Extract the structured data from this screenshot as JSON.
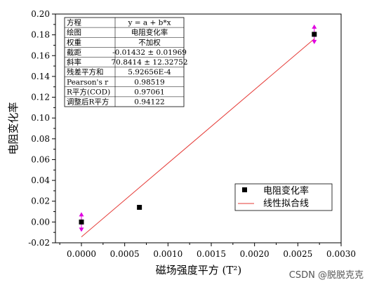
{
  "chart_data": {
    "type": "scatter",
    "xlabel": "磁场强度平方 (T²)",
    "ylabel": "电阻变化率",
    "xlim": [
      -0.0003,
      0.003
    ],
    "ylim": [
      -0.02,
      0.2
    ],
    "x_ticks": [
      "0.0000",
      "0.0005",
      "0.0010",
      "0.0015",
      "0.0020",
      "0.0025",
      "0.0030"
    ],
    "y_ticks": [
      "-0.02",
      "0.00",
      "0.02",
      "0.04",
      "0.06",
      "0.08",
      "0.10",
      "0.12",
      "0.14",
      "0.16",
      "0.18",
      "0.20"
    ],
    "series": [
      {
        "name": "电阻变化率",
        "marker": "square",
        "color": "#000000",
        "x": [
          0.0,
          0.00067,
          0.00269
        ],
        "y": [
          0.0,
          0.0141,
          0.1805
        ]
      },
      {
        "name": "线性拟合线",
        "style": "line",
        "color": "#e53935",
        "x": [
          0.0,
          0.00269
        ],
        "y": [
          -0.01432,
          0.17615
        ]
      }
    ],
    "error_markers_color": "#e000e0",
    "error_marker_points": [
      0,
      2
    ],
    "legend_position": "lower-right",
    "grid": false,
    "stats_table": [
      [
        "方程",
        "y = a + b*x"
      ],
      [
        "绘图",
        "电阻变化率"
      ],
      [
        "权重",
        "不加权"
      ],
      [
        "截距",
        "-0.01432 ± 0.01969"
      ],
      [
        "斜率",
        "70.8414 ± 12.32752"
      ],
      [
        "残差平方和",
        "5.92656E-4"
      ],
      [
        "Pearson's r",
        "0.98519"
      ],
      [
        "R平方(COD)",
        "0.97061"
      ],
      [
        "调整后R平方",
        "0.94122"
      ]
    ]
  },
  "watermark": "CSDN @脱脱克克"
}
